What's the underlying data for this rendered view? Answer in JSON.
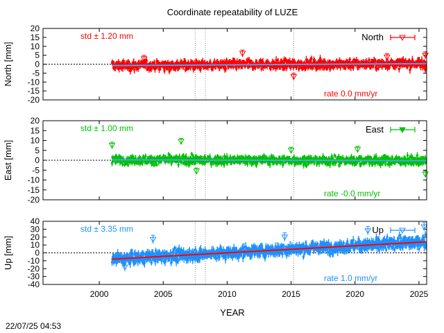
{
  "title": "Coordinate repeatability of LUZE",
  "xlabel": "YEAR",
  "timestamp": "22/07/25 04:53",
  "x_ticks": [
    2000,
    2005,
    2010,
    2015,
    2020,
    2025
  ],
  "xlim": [
    1995.6,
    2025.6
  ],
  "event_lines": [
    2007.5,
    2008.3,
    2015.2
  ],
  "chart_data": [
    {
      "type": "scatter",
      "component": "North",
      "ylabel": "North [mm]",
      "legend": "North",
      "legend_position": "top-right",
      "std_label": "std ± 1.20 mm",
      "rate_label": "rate  0.0 mm/yr",
      "color": "#ff0000",
      "trend_color": "#4aa3ff",
      "ylim": [
        -20,
        20
      ],
      "y_ticks": [
        20,
        15,
        10,
        5,
        0,
        -5,
        -10,
        -15,
        -20
      ],
      "start_year": 2001.0,
      "end_year": 2025.55,
      "std": 1.2,
      "rate": 0.0,
      "trend": [
        [
          2001.0,
          -0.8
        ],
        [
          2025.55,
          0.3
        ]
      ],
      "outliers": [
        [
          2003.5,
          3.0
        ],
        [
          2011.2,
          6.0
        ],
        [
          2015.2,
          -7.0
        ],
        [
          2022.5,
          4.0
        ],
        [
          2025.5,
          5.0
        ]
      ]
    },
    {
      "type": "scatter",
      "component": "East",
      "ylabel": "East [mm]",
      "legend": "East",
      "legend_position": "top-right",
      "std_label": "std ± 1.00 mm",
      "rate_label": "rate -0.0 mm/yr",
      "color": "#00c000",
      "trend_color": "#4aa3ff",
      "ylim": [
        -20,
        20
      ],
      "y_ticks": [
        20,
        15,
        10,
        5,
        0,
        -5,
        -10,
        -15,
        -20
      ],
      "start_year": 2001.0,
      "end_year": 2025.55,
      "std": 1.0,
      "rate": 0.0,
      "trend": [
        [
          2001.0,
          0.2
        ],
        [
          2025.55,
          -0.2
        ]
      ],
      "outliers": [
        [
          2001.0,
          7.5
        ],
        [
          2006.4,
          9.5
        ],
        [
          2007.6,
          -5.5
        ],
        [
          2015.0,
          5.0
        ],
        [
          2020.2,
          5.5
        ],
        [
          2025.5,
          -7.0
        ]
      ]
    },
    {
      "type": "scatter",
      "component": "Up",
      "ylabel": "Up [mm]",
      "legend": "Up",
      "legend_position": "top-right",
      "std_label": "std ± 3.35 mm",
      "rate_label": "rate  1.0 mm/yr",
      "color": "#1e90ff",
      "trend_color": "#ff0000",
      "ylim": [
        -40,
        40
      ],
      "y_ticks": [
        40,
        30,
        20,
        10,
        0,
        -10,
        -20,
        -30,
        -40
      ],
      "start_year": 2001.0,
      "end_year": 2025.55,
      "std": 3.35,
      "rate": 1.0,
      "trend": [
        [
          2001.0,
          -8.0
        ],
        [
          2025.55,
          14.0
        ]
      ],
      "outliers": [
        [
          2002.0,
          -18.0
        ],
        [
          2004.2,
          17.0
        ],
        [
          2014.5,
          20.0
        ],
        [
          2021.0,
          28.0
        ],
        [
          2025.4,
          33.0
        ]
      ]
    }
  ]
}
